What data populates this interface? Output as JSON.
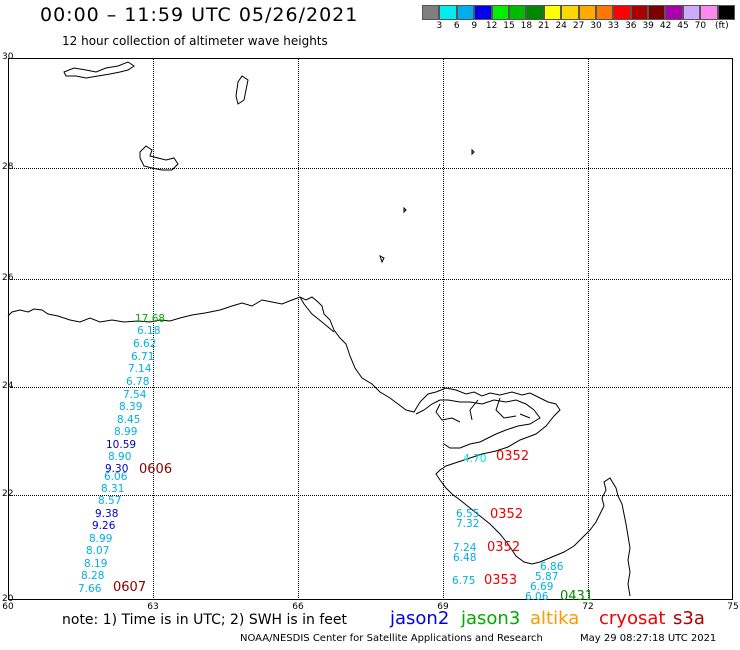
{
  "header": {
    "title": "00:00 – 11:59 UTC 05/26/2021",
    "subtitle": "12 hour collection of altimeter wave heights"
  },
  "colorbar": {
    "colors": [
      "#7f7f7f",
      "#00eeee",
      "#00aeee",
      "#0000ee",
      "#00ee00",
      "#00bb00",
      "#008800",
      "#ffff00",
      "#ffd700",
      "#ffaa00",
      "#ff7700",
      "#ff0000",
      "#aa0000",
      "#7a0000",
      "#aa00aa",
      "#ccaaff",
      "#ff88ee",
      "#000000"
    ],
    "labels": [
      "3",
      "6",
      "9",
      "12",
      "15",
      "18",
      "21",
      "24",
      "27",
      "30",
      "33",
      "36",
      "39",
      "42",
      "45",
      "70",
      "(ft)"
    ]
  },
  "axes": {
    "lat_labels": [
      "30",
      "28",
      "26",
      "24",
      "22",
      "20"
    ],
    "lon_labels": [
      "60",
      "63",
      "66",
      "69",
      "72",
      "75"
    ]
  },
  "observations": [
    {
      "value": "17.68",
      "color": "#00aa00"
    },
    {
      "value": "6.18",
      "color": "#00b0e0"
    },
    {
      "value": "6.62",
      "color": "#00b0e0"
    },
    {
      "value": "6.71",
      "color": "#00b0e0"
    },
    {
      "value": "7.14",
      "color": "#00b0e0"
    },
    {
      "value": "6.78",
      "color": "#00b0e0"
    },
    {
      "value": "7.54",
      "color": "#00b0e0"
    },
    {
      "value": "8.39",
      "color": "#00b0e0"
    },
    {
      "value": "8.45",
      "color": "#00b0e0"
    },
    {
      "value": "8.99",
      "color": "#00b0e0"
    },
    {
      "value": "10.59",
      "color": "#0000cc"
    },
    {
      "value": "8.90",
      "color": "#00b0e0"
    },
    {
      "value": "9.30",
      "color": "#0000cc"
    },
    {
      "value": "6.06",
      "color": "#00b0e0"
    },
    {
      "value": "8.31",
      "color": "#00b0e0"
    },
    {
      "value": "8.57",
      "color": "#00b0e0"
    },
    {
      "value": "9.38",
      "color": "#0000cc"
    },
    {
      "value": "9.26",
      "color": "#0000cc"
    },
    {
      "value": "8.99",
      "color": "#00b0e0"
    },
    {
      "value": "8.07",
      "color": "#00b0e0"
    },
    {
      "value": "8.19",
      "color": "#00b0e0"
    },
    {
      "value": "8.28",
      "color": "#00b0e0"
    },
    {
      "value": "7.66",
      "color": "#00b0e0"
    },
    {
      "value": "4.70",
      "color": "#00ddee"
    },
    {
      "value": "6.55",
      "color": "#00b0e0"
    },
    {
      "value": "7.32",
      "color": "#00b0e0"
    },
    {
      "value": "7.24",
      "color": "#00b0e0"
    },
    {
      "value": "6.48",
      "color": "#00b0e0"
    },
    {
      "value": "6.75",
      "color": "#00b0e0"
    },
    {
      "value": "6.86",
      "color": "#00b0e0"
    },
    {
      "value": "5.87",
      "color": "#00b0e0"
    },
    {
      "value": "6.69",
      "color": "#00b0e0"
    },
    {
      "value": "6.06",
      "color": "#00b0e0"
    }
  ],
  "pass_times": [
    {
      "label": "0606",
      "color": "#880000"
    },
    {
      "label": "0607",
      "color": "#880000"
    },
    {
      "label": "0352",
      "color": "#ee0000"
    },
    {
      "label": "0352",
      "color": "#ee0000"
    },
    {
      "label": "0352",
      "color": "#ee0000"
    },
    {
      "label": "0353",
      "color": "#ee0000"
    },
    {
      "label": "0431",
      "color": "#008800"
    }
  ],
  "note": "note:  1) Time is in UTC;  2) SWH is in feet",
  "legend": [
    {
      "label": "jason2",
      "color": "#0000dd"
    },
    {
      "label": "jason3",
      "color": "#00aa00"
    },
    {
      "label": "altika",
      "color": "#ff9900"
    },
    {
      "label": "cryosat",
      "color": "#ee0000"
    },
    {
      "label": "s3a",
      "color": "#aa0000"
    }
  ],
  "credit": "NOAA/NESDIS Center for Satellite Applications and Research",
  "stamp": "May 29 08:27:18 UTC 2021"
}
